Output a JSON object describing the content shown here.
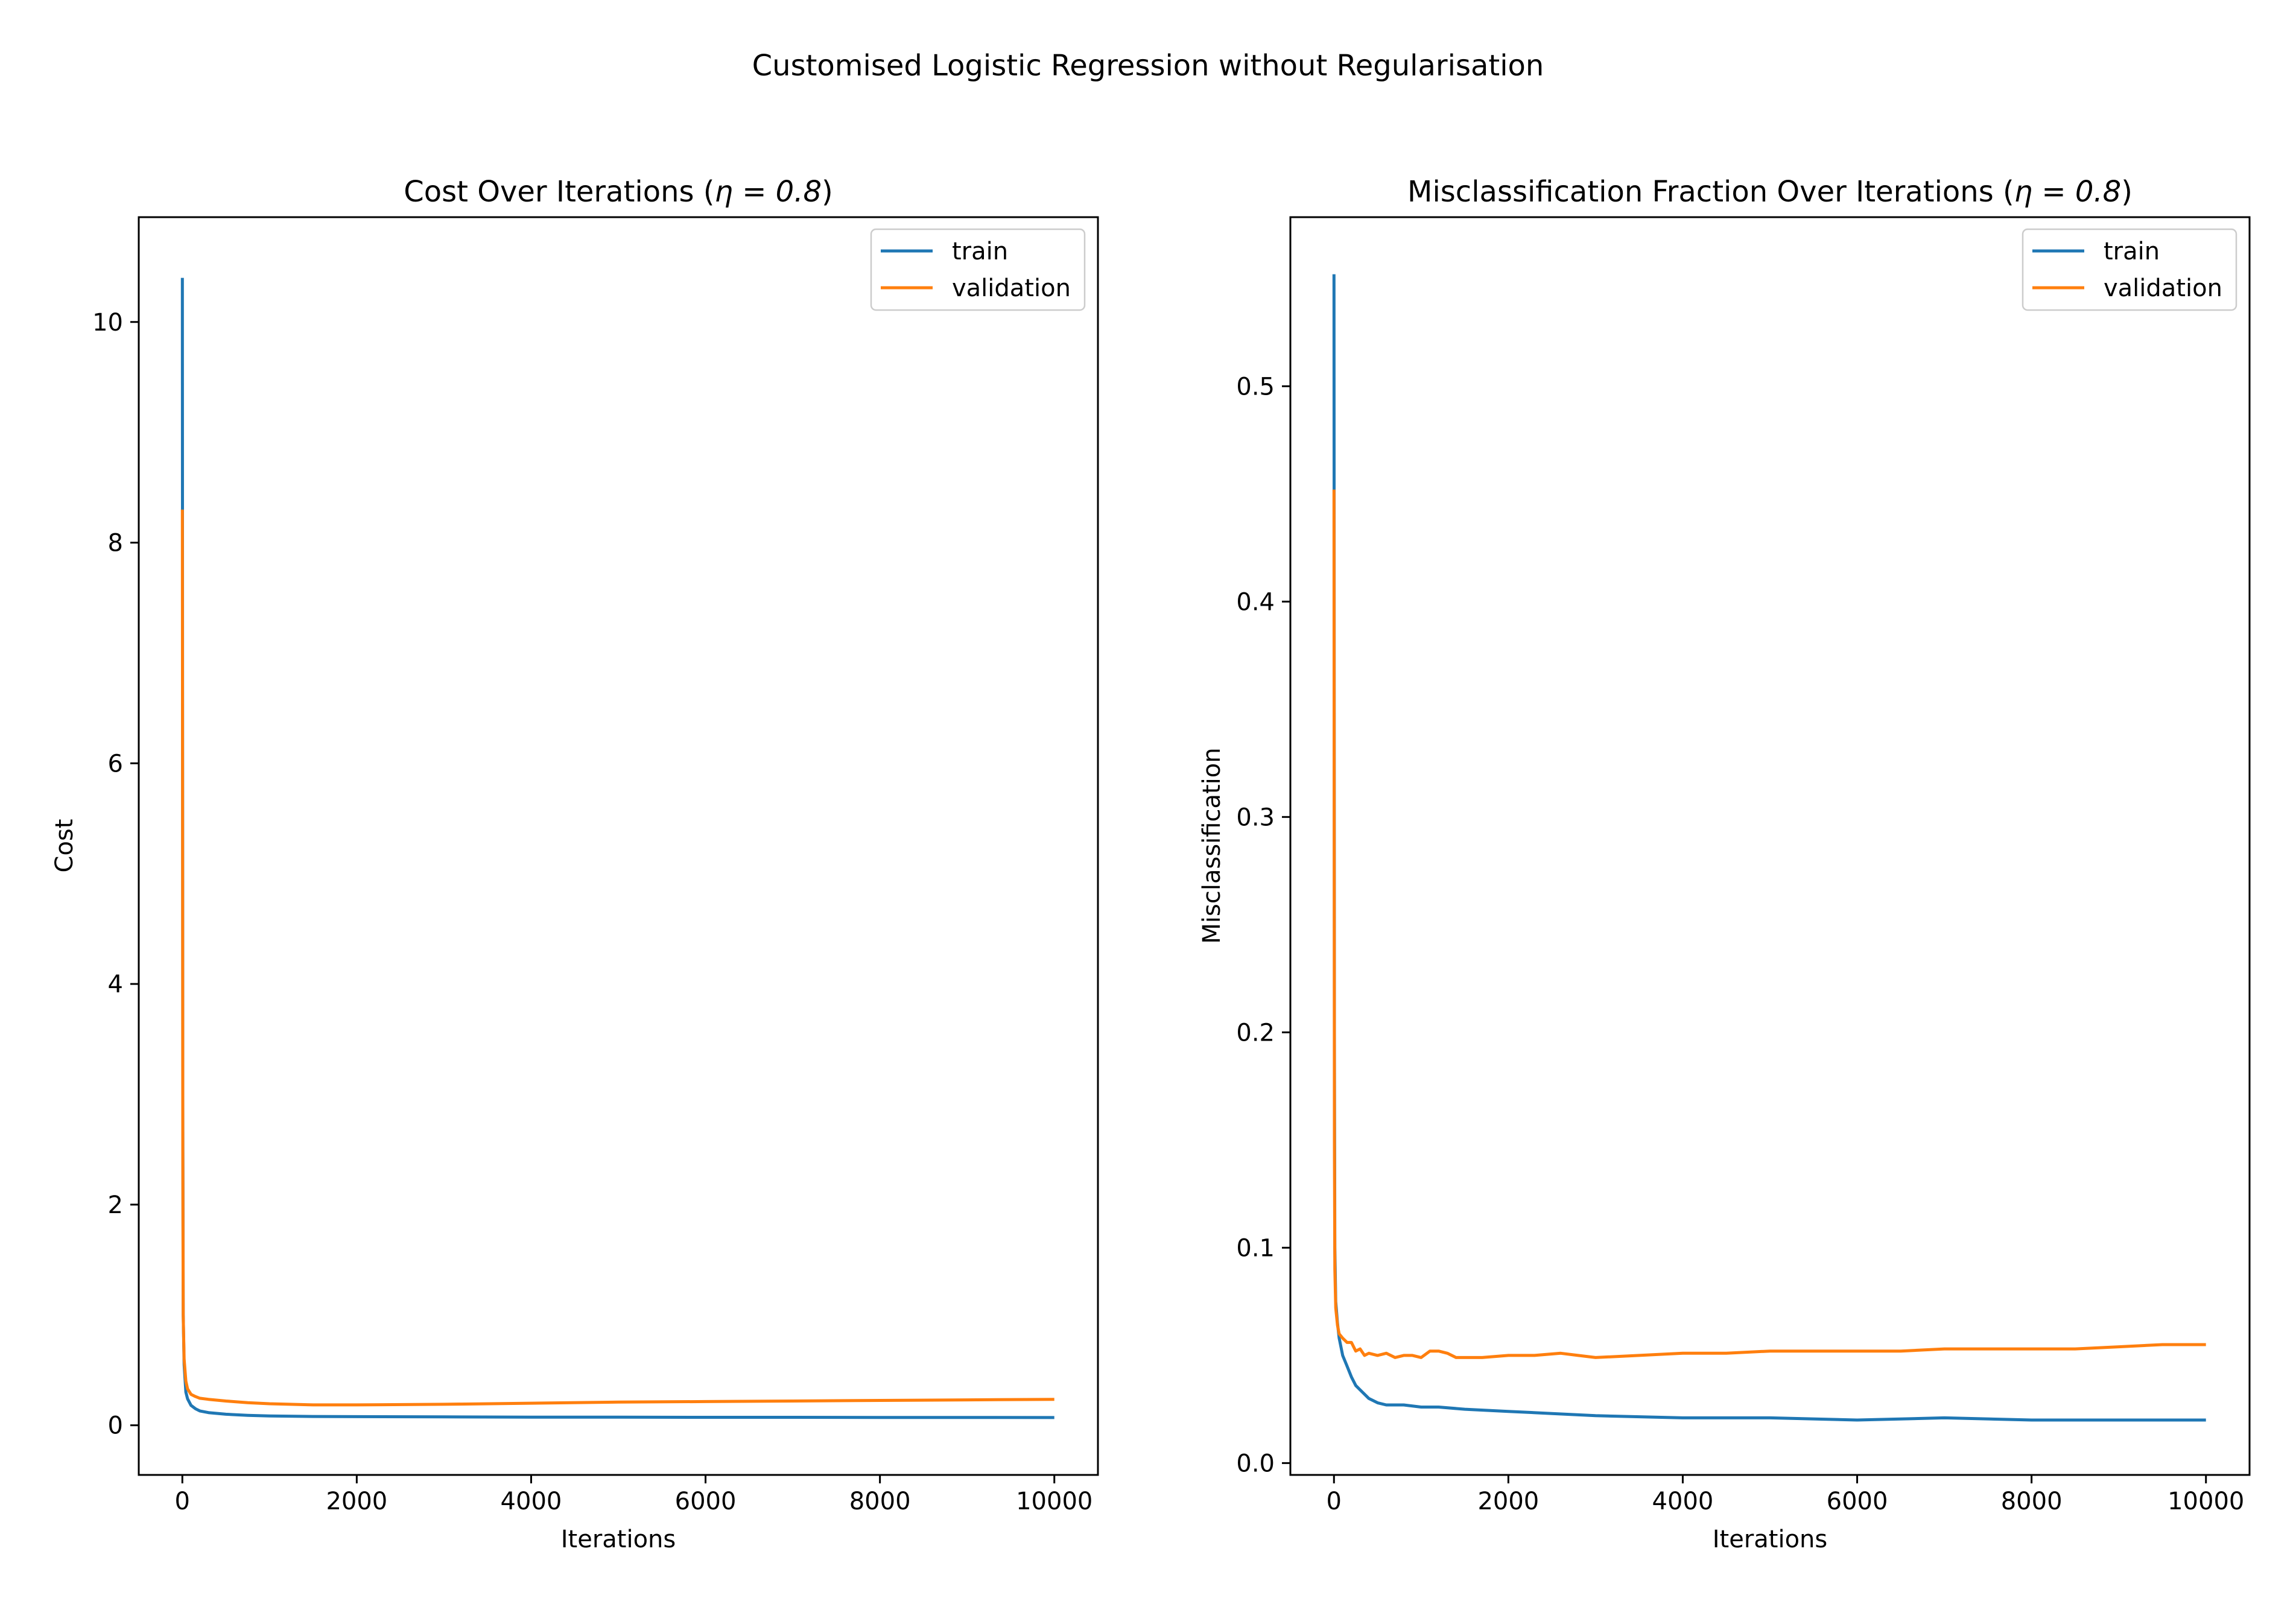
{
  "figure": {
    "suptitle": "Customised Logistic Regression without Regularisation"
  },
  "colors": {
    "train": "#1f77b4",
    "validation": "#ff7f0e"
  },
  "chart_data": [
    {
      "type": "line",
      "title_text": "Cost Over Iterations (",
      "title_eta": "η = 0.8",
      "title_close": ")",
      "xlabel": "Iterations",
      "ylabel": "Cost",
      "xlim": [
        -500,
        10500
      ],
      "ylim": [
        -0.45,
        10.95
      ],
      "xticks": [
        0,
        2000,
        4000,
        6000,
        8000,
        10000
      ],
      "xtick_labels": [
        "0",
        "2000",
        "4000",
        "6000",
        "8000",
        "10000"
      ],
      "yticks": [
        0,
        2,
        4,
        6,
        8,
        10
      ],
      "ytick_labels": [
        "0",
        "2",
        "4",
        "6",
        "8",
        "10"
      ],
      "grid": false,
      "legend": "top-right",
      "series": [
        {
          "name": "train",
          "x": [
            0,
            2,
            5,
            10,
            20,
            40,
            60,
            100,
            150,
            200,
            300,
            500,
            750,
            1000,
            1500,
            2000,
            3000,
            4000,
            5000,
            6000,
            7000,
            8000,
            9000,
            10000
          ],
          "y": [
            10.4,
            7.0,
            3.0,
            1.0,
            0.55,
            0.3,
            0.24,
            0.18,
            0.15,
            0.13,
            0.115,
            0.1,
            0.09,
            0.085,
            0.08,
            0.078,
            0.076,
            0.074,
            0.073,
            0.072,
            0.072,
            0.071,
            0.071,
            0.07
          ]
        },
        {
          "name": "validation",
          "x": [
            0,
            2,
            5,
            10,
            20,
            40,
            60,
            100,
            150,
            200,
            300,
            500,
            750,
            1000,
            1500,
            2000,
            3000,
            4000,
            5000,
            6000,
            7000,
            8000,
            9000,
            10000
          ],
          "y": [
            8.3,
            6.0,
            2.5,
            1.0,
            0.6,
            0.4,
            0.33,
            0.28,
            0.26,
            0.245,
            0.235,
            0.22,
            0.205,
            0.195,
            0.185,
            0.185,
            0.19,
            0.2,
            0.21,
            0.215,
            0.22,
            0.225,
            0.23,
            0.235
          ]
        }
      ]
    },
    {
      "type": "line",
      "title_text": "Misclassification Fraction Over Iterations (",
      "title_eta": "η = 0.8",
      "title_close": ")",
      "xlabel": "Iterations",
      "ylabel": "Misclassification",
      "xlim": [
        -500,
        10500
      ],
      "ylim": [
        -0.0055,
        0.5785
      ],
      "xticks": [
        0,
        2000,
        4000,
        6000,
        8000,
        10000
      ],
      "xtick_labels": [
        "0",
        "2000",
        "4000",
        "6000",
        "8000",
        "10000"
      ],
      "yticks": [
        0.0,
        0.1,
        0.2,
        0.3,
        0.4,
        0.5
      ],
      "ytick_labels": [
        "0.0",
        "0.1",
        "0.2",
        "0.3",
        "0.4",
        "0.5"
      ],
      "grid": false,
      "legend": "top-right",
      "series": [
        {
          "name": "train",
          "x": [
            0,
            2,
            5,
            10,
            20,
            40,
            60,
            100,
            150,
            200,
            250,
            300,
            400,
            500,
            600,
            800,
            1000,
            1200,
            1500,
            2000,
            2500,
            3000,
            4000,
            5000,
            6000,
            7000,
            8000,
            9000,
            10000
          ],
          "y": [
            0.552,
            0.4,
            0.2,
            0.1,
            0.075,
            0.065,
            0.058,
            0.05,
            0.045,
            0.04,
            0.036,
            0.034,
            0.03,
            0.028,
            0.027,
            0.027,
            0.026,
            0.026,
            0.025,
            0.024,
            0.023,
            0.022,
            0.021,
            0.021,
            0.02,
            0.021,
            0.02,
            0.02,
            0.02
          ]
        },
        {
          "name": "validation",
          "x": [
            0,
            2,
            5,
            10,
            20,
            40,
            60,
            100,
            150,
            200,
            250,
            300,
            350,
            400,
            500,
            600,
            700,
            800,
            900,
            1000,
            1100,
            1200,
            1300,
            1400,
            1500,
            1700,
            2000,
            2300,
            2600,
            2800,
            3000,
            3500,
            4000,
            4500,
            5000,
            5500,
            6000,
            6500,
            7000,
            7500,
            8000,
            8500,
            9000,
            9500,
            10000
          ],
          "y": [
            0.452,
            0.3,
            0.15,
            0.09,
            0.072,
            0.064,
            0.06,
            0.058,
            0.056,
            0.056,
            0.052,
            0.053,
            0.05,
            0.051,
            0.05,
            0.051,
            0.049,
            0.05,
            0.05,
            0.049,
            0.052,
            0.052,
            0.051,
            0.049,
            0.049,
            0.049,
            0.05,
            0.05,
            0.051,
            0.05,
            0.049,
            0.05,
            0.051,
            0.051,
            0.052,
            0.052,
            0.052,
            0.052,
            0.053,
            0.053,
            0.053,
            0.053,
            0.054,
            0.055,
            0.055
          ]
        }
      ]
    }
  ]
}
